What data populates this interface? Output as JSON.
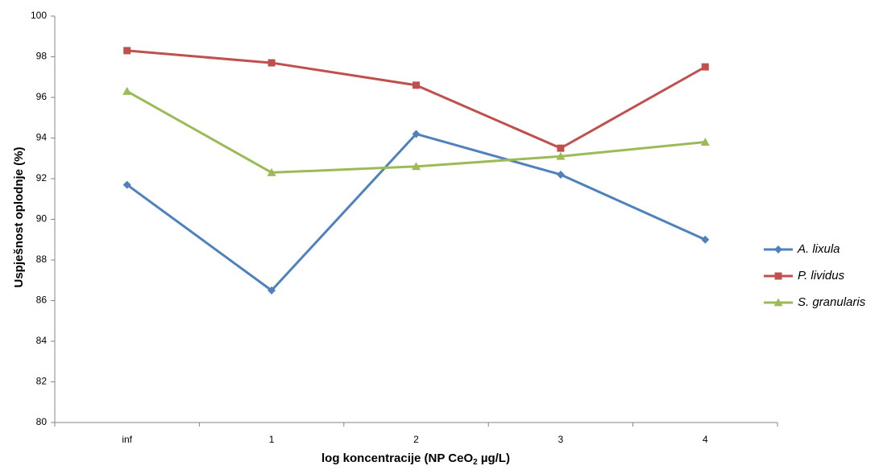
{
  "chart_data": {
    "type": "line",
    "title": "",
    "xlabel_main": "log koncentracije (NP CeO",
    "xlabel_sub": "2",
    "xlabel_tail": " µg/L)",
    "ylabel": "Uspješnost oplodnje (%)",
    "categories": [
      "inf",
      "1",
      "2",
      "3",
      "4"
    ],
    "ylim": [
      80,
      100
    ],
    "yticks": [
      "80",
      "82",
      "84",
      "86",
      "88",
      "90",
      "92",
      "94",
      "96",
      "98",
      "100"
    ],
    "grid": false,
    "legend_position": "right",
    "series": [
      {
        "name": "A. lixula",
        "color": "#4f81bd",
        "marker": "diamond",
        "values": [
          91.7,
          86.5,
          94.2,
          92.2,
          89.0
        ]
      },
      {
        "name": "P. lividus",
        "color": "#c0504d",
        "marker": "square",
        "values": [
          98.3,
          97.7,
          96.6,
          93.5,
          97.5
        ]
      },
      {
        "name": "S. granularis",
        "color": "#9bbb59",
        "marker": "triangle",
        "values": [
          96.3,
          92.3,
          92.6,
          93.1,
          93.8
        ]
      }
    ]
  }
}
